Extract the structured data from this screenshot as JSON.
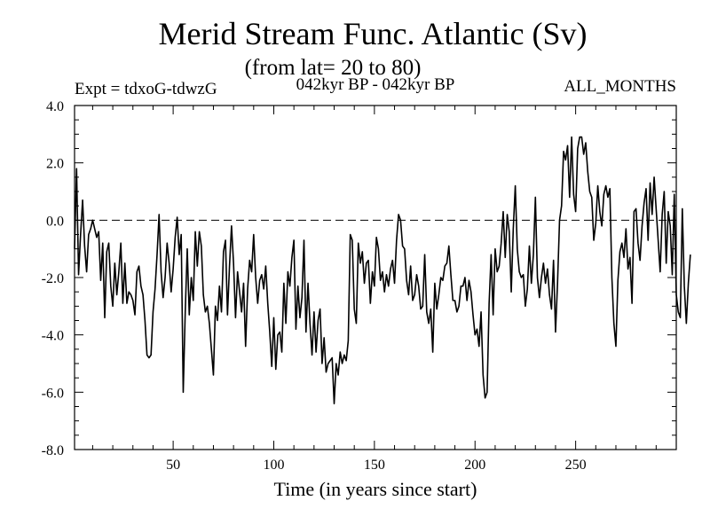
{
  "chart_data": {
    "type": "line",
    "title": "Merid Stream Func. Atlantic (Sv)",
    "subtitle": "(from lat= 20 to 80)",
    "annotations": {
      "left": "Expt = tdxoG-tdwzG",
      "center": "042kyr BP - 042kyr BP",
      "right": "ALL_MONTHS"
    },
    "xlabel": "Time (in years since start)",
    "ylabel": "",
    "xlim": [
      1,
      300
    ],
    "ylim": [
      -8,
      4
    ],
    "x_ticks": [
      50,
      100,
      150,
      200,
      250
    ],
    "y_ticks": [
      -8,
      -6,
      -4,
      -2,
      0,
      2,
      4
    ],
    "x_tick_labels": [
      "50",
      "100",
      "150",
      "200",
      "250"
    ],
    "y_tick_labels": [
      "-8.0",
      "-6.0",
      "-4.0",
      "-2.0",
      "0.0",
      "2.0",
      "4.0"
    ],
    "reference_line": {
      "y": 0,
      "style": "dashed"
    },
    "series": [
      {
        "x_start": 1,
        "x_step": 1,
        "values": [
          -1.0,
          1.8,
          -1.9,
          -0.5,
          0.7,
          -0.9,
          -1.8,
          -0.5,
          -0.3,
          0.0,
          -0.3,
          -0.6,
          -0.4,
          -2.1,
          -0.8,
          -3.4,
          -1.1,
          -0.8,
          -2.3,
          -3.0,
          -1.5,
          -2.6,
          -1.8,
          -0.8,
          -2.9,
          -1.5,
          -2.9,
          -2.5,
          -2.6,
          -2.8,
          -3.3,
          -1.8,
          -1.6,
          -2.3,
          -2.6,
          -3.5,
          -4.7,
          -4.8,
          -4.7,
          -3.2,
          -2.4,
          -1.2,
          0.2,
          -1.8,
          -2.7,
          -2.0,
          -0.8,
          -1.5,
          -2.5,
          -1.7,
          -0.6,
          0.1,
          -1.2,
          -0.5,
          -6.0,
          -3.2,
          -1.0,
          -3.3,
          -2.0,
          -2.8,
          -0.4,
          -1.6,
          -0.4,
          -0.9,
          -2.6,
          -3.2,
          -3.0,
          -3.6,
          -4.5,
          -5.4,
          -3.0,
          -3.5,
          -2.3,
          -3.2,
          -1.1,
          -0.7,
          -3.3,
          -1.6,
          -0.2,
          -1.5,
          -3.4,
          -1.8,
          -2.5,
          -3.2,
          -2.2,
          -4.4,
          -2.4,
          -1.4,
          -1.8,
          -0.5,
          -2.0,
          -2.9,
          -2.1,
          -1.9,
          -2.4,
          -1.6,
          -2.9,
          -3.9,
          -5.1,
          -3.4,
          -5.2,
          -4.0,
          -3.9,
          -4.6,
          -2.2,
          -3.6,
          -1.8,
          -2.3,
          -1.3,
          -0.7,
          -3.8,
          -2.3,
          -3.4,
          -2.7,
          -0.7,
          -3.9,
          -2.2,
          -3.6,
          -4.7,
          -3.2,
          -4.6,
          -3.5,
          -3.1,
          -5.0,
          -4.1,
          -5.3,
          -5.0,
          -4.9,
          -4.8,
          -6.4,
          -5.0,
          -5.4,
          -4.6,
          -5.0,
          -4.7,
          -4.9,
          -4.2,
          -0.5,
          -0.7,
          -3.1,
          -3.6,
          -0.8,
          -1.5,
          -1.1,
          -2.2,
          -1.5,
          -1.4,
          -2.9,
          -1.8,
          -2.3,
          -0.6,
          -1.0,
          -2.1,
          -1.8,
          -2.5,
          -1.9,
          -2.3,
          -1.7,
          -1.4,
          -2.2,
          -0.7,
          0.2,
          0.0,
          -0.9,
          -1.0,
          -2.1,
          -2.6,
          -1.6,
          -2.8,
          -2.6,
          -1.9,
          -2.3,
          -3.1,
          -3.0,
          -1.2,
          -3.2,
          -3.6,
          -3.1,
          -4.6,
          -2.2,
          -3.1,
          -2.6,
          -2.0,
          -2.1,
          -1.6,
          -1.5,
          -0.9,
          -1.9,
          -2.8,
          -2.8,
          -3.2,
          -3.0,
          -2.3,
          -2.3,
          -2.0,
          -2.8,
          -2.1,
          -2.5,
          -3.3,
          -4.0,
          -3.8,
          -4.4,
          -3.2,
          -5.4,
          -6.2,
          -6.0,
          -2.9,
          -1.2,
          -3.3,
          -1.0,
          -1.8,
          -1.6,
          -0.8,
          0.3,
          -1.3,
          0.2,
          -0.4,
          -2.5,
          -0.3,
          1.2,
          -1.0,
          -1.8,
          -2.0,
          -1.9,
          -3.0,
          -2.4,
          -0.9,
          -2.2,
          -1.2,
          0.8,
          -2.0,
          -2.7,
          -2.0,
          -1.5,
          -2.2,
          -1.7,
          -2.6,
          -3.1,
          -1.4,
          -3.9,
          -2.2,
          0.0,
          0.5,
          2.4,
          2.1,
          2.6,
          0.8,
          2.9,
          0.9,
          0.3,
          2.5,
          2.9,
          2.9,
          2.3,
          2.7,
          1.7,
          1.0,
          0.8,
          -0.7,
          -0.1,
          1.2,
          0.3,
          -0.2,
          0.9,
          1.2,
          0.8,
          1.1,
          -2.0,
          -3.6,
          -4.4,
          -2.1,
          -1.1,
          -0.8,
          -1.3,
          -0.3,
          -1.7,
          -1.3,
          -2.9,
          0.3,
          0.4,
          -0.8,
          -1.4,
          -0.2,
          0.6,
          1.1,
          -0.7,
          1.3,
          0.2,
          1.5,
          0.4,
          -0.7,
          -1.8,
          0.2,
          1.0,
          -1.5,
          0.3,
          -0.2,
          -1.9,
          0.9,
          -2.6,
          -3.2,
          -3.4,
          0.4,
          -2.3,
          -3.6,
          -2.2,
          -1.2
        ]
      }
    ]
  }
}
